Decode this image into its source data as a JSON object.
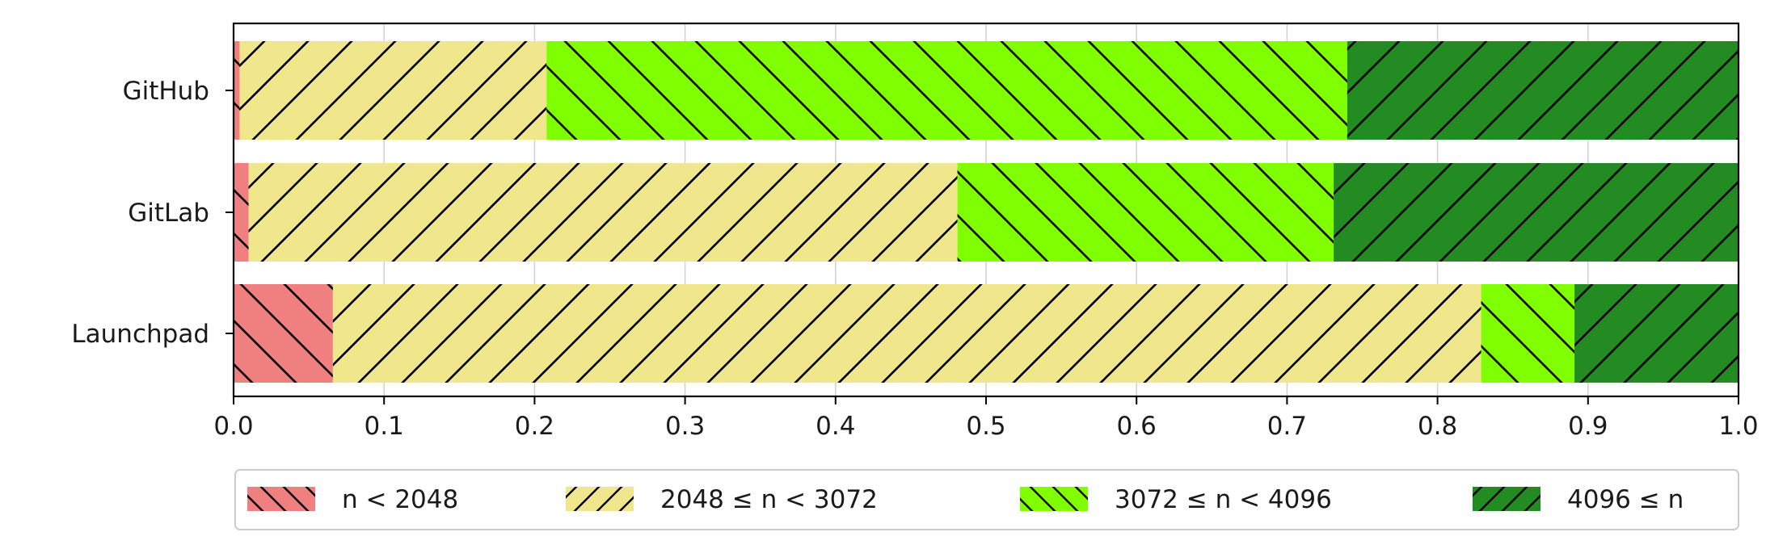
{
  "chart_data": {
    "type": "bar",
    "orientation": "horizontal",
    "stacked": true,
    "title": "",
    "xlabel": "",
    "ylabel": "",
    "xlim": [
      0.0,
      1.0
    ],
    "xticks": [
      "0.0",
      "0.1",
      "0.2",
      "0.3",
      "0.4",
      "0.5",
      "0.6",
      "0.7",
      "0.8",
      "0.9",
      "1.0"
    ],
    "grid": "vertical",
    "legend_position": "bottom",
    "categories": [
      "GitHub",
      "GitLab",
      "Launchpad"
    ],
    "series": [
      {
        "name": "n < 2048",
        "color": "#f08080",
        "hatch": "backslash",
        "values": [
          0.004,
          0.01,
          0.066
        ]
      },
      {
        "name": "2048 ≤ n < 3072",
        "color": "#f0e68c",
        "hatch": "slash",
        "values": [
          0.204,
          0.471,
          0.763
        ]
      },
      {
        "name": "3072 ≤ n < 4096",
        "color": "#7fff00",
        "hatch": "backslash",
        "values": [
          0.532,
          0.25,
          0.062
        ]
      },
      {
        "name": "4096 ≤ n",
        "color": "#228b22",
        "hatch": "slash",
        "values": [
          0.26,
          0.269,
          0.109
        ]
      }
    ]
  }
}
